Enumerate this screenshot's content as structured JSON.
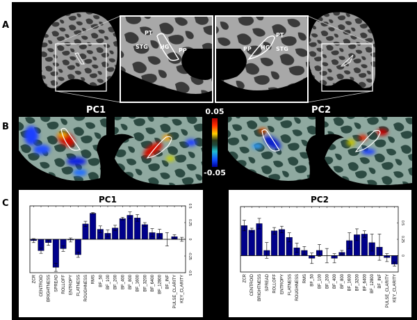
{
  "panel_labels": {
    "a": "A",
    "b": "B",
    "c": "C"
  },
  "panel_a": {
    "left_zoom": {
      "pt": "PT",
      "stg": "STG",
      "hg": "HG",
      "pp": "PP"
    },
    "right_zoom": {
      "pt": "PT",
      "stg": "STG",
      "hg": "HG",
      "pp": "PP"
    }
  },
  "panel_b": {
    "pc1_title": "PC1",
    "pc2_title": "PC2",
    "colorbar": {
      "max_label": "0.05",
      "min_label": "-0.05",
      "colors": [
        "#b00000",
        "#ff3000",
        "#ffd000",
        "#2a3a1a",
        "#1e4a3e",
        "#20c0d0",
        "#1050ff",
        "#0000a0"
      ]
    }
  },
  "chart_data": [
    {
      "type": "bar",
      "title": "PC1",
      "categories": [
        "ZCR",
        "CENTROID",
        "BRIGHTNESS",
        "SPREAD",
        "ROLLOFF",
        "ENTROPY",
        "FLATNESS",
        "ROUGHNESS",
        "RMS",
        "BF_50",
        "BF_100",
        "BF_200",
        "BF_400",
        "BF_800",
        "BF_1600",
        "BF_3200",
        "BF_6400",
        "BF_12800",
        "BF_INF",
        "PULSE_CLARITY",
        "KEY_CLARITY"
      ],
      "values": [
        -0.02,
        -0.17,
        -0.05,
        -0.42,
        -0.14,
        -0.01,
        -0.23,
        0.23,
        0.39,
        0.15,
        0.09,
        0.17,
        0.31,
        0.36,
        0.32,
        0.22,
        0.1,
        0.09,
        0.0,
        0.04,
        0.0
      ],
      "errors": [
        0.03,
        0.04,
        0.04,
        0.06,
        0.04,
        0.03,
        0.04,
        0.04,
        0.01,
        0.05,
        0.05,
        0.04,
        0.02,
        0.05,
        0.05,
        0.03,
        0.06,
        0.06,
        0.1,
        0.03,
        0.03
      ],
      "ylim": [
        -0.5,
        0.5
      ],
      "yticks": [
        "-0.5",
        "-0.25",
        "0",
        "0.25",
        "0.5"
      ],
      "ytick_values": [
        -0.5,
        -0.25,
        0,
        0.25,
        0.5
      ],
      "y_axis_side": "right",
      "bar_color": "#00008b"
    },
    {
      "type": "bar",
      "title": "PC2",
      "categories": [
        "ZCR",
        "CENTROID",
        "BRIGHTNESS",
        "SPREAD",
        "ROLLOFF",
        "ENTROPY",
        "FLATNESS",
        "ROUGHNESS",
        "RMS",
        "BF_50",
        "BF_100",
        "BF_200",
        "BF_400",
        "BF_800",
        "BF_1600",
        "BF_3200",
        "BF_6400",
        "BF_12800",
        "BF_INF",
        "PULSE_CLARITY",
        "KEY_CLARITY"
      ],
      "values": [
        0.46,
        0.39,
        0.49,
        0.08,
        0.38,
        0.4,
        0.28,
        0.12,
        0.08,
        -0.04,
        0.08,
        0.0,
        -0.04,
        0.05,
        0.23,
        0.32,
        0.33,
        0.2,
        0.13,
        -0.03,
        -0.13
      ],
      "errors": [
        0.08,
        0.03,
        0.08,
        0.12,
        0.05,
        0.05,
        0.07,
        0.07,
        0.06,
        0.08,
        0.09,
        0.11,
        0.07,
        0.03,
        0.12,
        0.09,
        0.05,
        0.13,
        0.2,
        0.06,
        0.03
      ],
      "ylim": [
        -0.25,
        0.75
      ],
      "yticks": [
        "0",
        "0.25",
        "0.5"
      ],
      "ytick_values": [
        0,
        0.25,
        0.5
      ],
      "y_axis_side": "right",
      "bar_color": "#00008b"
    }
  ]
}
